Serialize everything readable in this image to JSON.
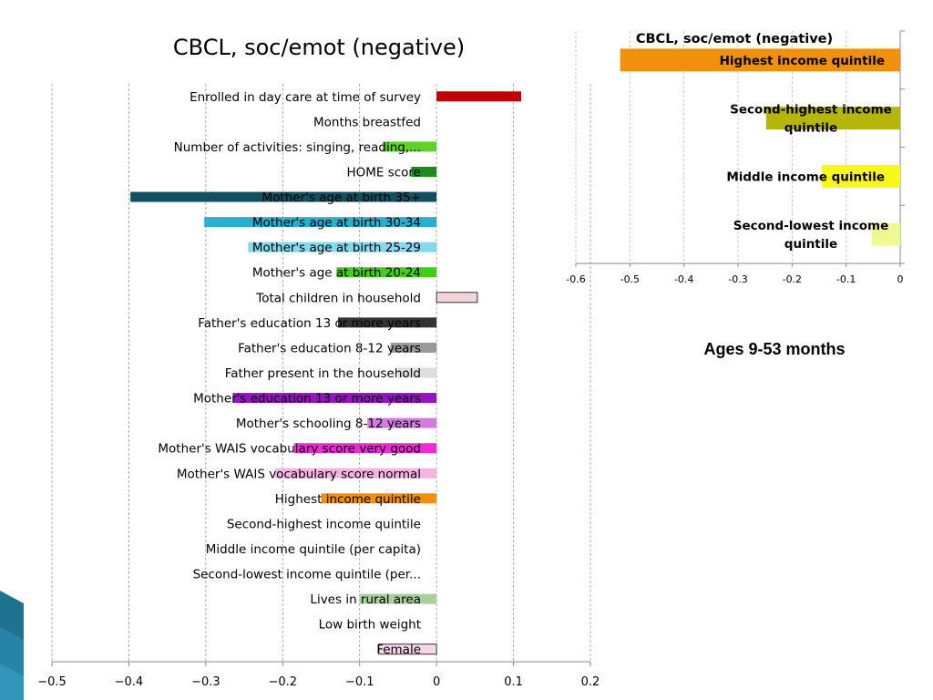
{
  "main_title": "CBCL, soc/emot (negative)",
  "ages_label": "Ages 9-53 months",
  "chart_data": [
    {
      "type": "bar",
      "orientation": "horizontal",
      "title": "CBCL, soc/emot (negative)",
      "xlabel": "",
      "ylabel": "",
      "xlim": [
        -0.5,
        0.2
      ],
      "xticks": [
        -0.5,
        -0.4,
        -0.3,
        -0.2,
        -0.1,
        0,
        0.1,
        0.2
      ],
      "xtick_labels": [
        "−0.5",
        "−0.4",
        "−0.3",
        "−0.2",
        "−0.1",
        "0",
        "0.1",
        "0.2"
      ],
      "grid": true,
      "categories": [
        "Enrolled in day care at time of survey",
        "Months breastfed",
        "Number of activities: singing, reading,...",
        "HOME score",
        "Mother's age at birth 35+",
        "Mother's age at birth 30-34",
        "Mother's age at birth 25-29",
        "Mother's age at birth 20-24",
        "Total children in household",
        "Father's education 13 or more years",
        "Father's education 8-12 years",
        "Father present in the household",
        "Mother's education 13 or more years",
        "Mother's schooling 8-12 years",
        "Mother's WAIS vocabulary score very good",
        "Mother's WAIS vocabulary score normal",
        "Highest income quintile",
        "Second-highest income quintile",
        "Middle income quintile (per capita)",
        "Second-lowest income quintile (per...",
        "Lives in rural area",
        "Low birth weight",
        "Female"
      ],
      "values": [
        0.11,
        0,
        -0.07,
        -0.033,
        -0.398,
        -0.302,
        -0.245,
        -0.13,
        0.053,
        -0.128,
        -0.06,
        -0.05,
        -0.265,
        -0.09,
        -0.185,
        -0.21,
        -0.15,
        0,
        0,
        0,
        -0.1,
        0,
        -0.075
      ],
      "colors": [
        "#c00000",
        "#ffffff",
        "#5ed12a",
        "#1f8c1b",
        "#124f60",
        "#29afd1",
        "#85d9ee",
        "#3fcf1a",
        "#f2d6dc",
        "#333333",
        "#999999",
        "#dddddd",
        "#9314c2",
        "#d27ae0",
        "#f029d8",
        "#f5b3e3",
        "#f0900d",
        "#ffffff",
        "#ffffff",
        "#ffffff",
        "#a9cf9d",
        "#ffffff",
        "#f9d5e8"
      ],
      "outlined": [
        false,
        false,
        false,
        false,
        false,
        false,
        false,
        false,
        true,
        false,
        false,
        false,
        false,
        false,
        false,
        false,
        false,
        false,
        false,
        false,
        false,
        false,
        true
      ]
    },
    {
      "type": "bar",
      "orientation": "horizontal",
      "title": "CBCL, soc/emot (negative)",
      "xlabel": "",
      "ylabel": "",
      "xlim": [
        -0.6,
        0
      ],
      "xticks": [
        -0.6,
        -0.5,
        -0.4,
        -0.3,
        -0.2,
        -0.1,
        0
      ],
      "xtick_labels": [
        "-0.6",
        "-0.5",
        "-0.4",
        "-0.3",
        "-0.2",
        "-0.1",
        "0"
      ],
      "grid": true,
      "categories": [
        [
          "Highest income quintile"
        ],
        [
          "Second-highest income",
          "quintile"
        ],
        [
          "Middle income quintile"
        ],
        [
          "Second-lowest income",
          "quintile"
        ]
      ],
      "values": [
        -0.518,
        -0.248,
        -0.145,
        -0.053
      ],
      "colors": [
        "#f0900d",
        "#b5b50a",
        "#f8f81a",
        "#f0f893"
      ]
    }
  ]
}
